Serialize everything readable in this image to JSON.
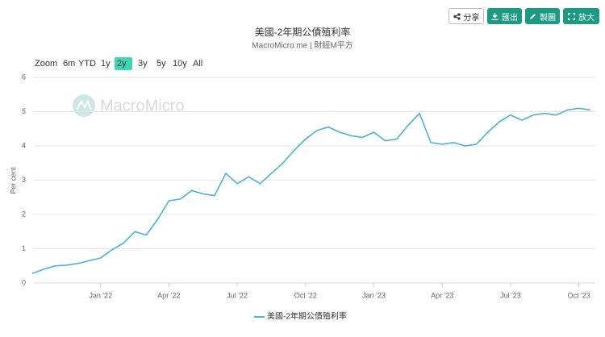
{
  "toolbar": {
    "buttons": [
      "分享",
      "匯出",
      "製圖",
      "放大"
    ]
  },
  "range_selector": {
    "label": "Zoom",
    "options": [
      "6m",
      "YTD",
      "1y",
      "2y",
      "3y",
      "5y",
      "10y",
      "All"
    ],
    "selected": 3
  },
  "watermark": "MacroMicro",
  "chart_data": {
    "type": "line",
    "title": "美國-2年期公債殖利率",
    "subtitle": "MacroMicro.me | 財經M平方",
    "y_label": "Per cent",
    "categories": [
      null,
      null,
      null,
      null,
      null,
      null,
      "Jan '22",
      null,
      null,
      null,
      null,
      null,
      "Apr '22",
      null,
      null,
      null,
      null,
      null,
      "Jul '22",
      null,
      null,
      null,
      null,
      null,
      "Oct '22",
      null,
      null,
      null,
      null,
      null,
      "Jan '23",
      null,
      null,
      null,
      null,
      null,
      "Apr '23",
      null,
      null,
      null,
      null,
      null,
      "Jul '23",
      null,
      null,
      null,
      null,
      null,
      "Oct '23",
      null
    ],
    "series": [
      {
        "name": "美國-2年期公債殖利率",
        "color": "#4ab3d3",
        "values": [
          0.28,
          0.4,
          0.5,
          0.52,
          0.57,
          0.65,
          0.73,
          0.97,
          1.16,
          1.5,
          1.4,
          1.85,
          2.4,
          2.45,
          2.7,
          2.6,
          2.55,
          3.2,
          2.9,
          3.1,
          2.9,
          3.2,
          3.5,
          3.87,
          4.2,
          4.45,
          4.55,
          4.4,
          4.3,
          4.25,
          4.4,
          4.15,
          4.2,
          4.6,
          4.95,
          4.1,
          4.05,
          4.1,
          4.0,
          4.05,
          4.4,
          4.7,
          4.9,
          4.75,
          4.9,
          4.95,
          4.9,
          5.05,
          5.1,
          5.05
        ]
      }
    ],
    "ylim": [
      0,
      6
    ],
    "yticks": [
      0,
      1,
      2,
      3,
      4,
      5,
      6
    ],
    "grid": true
  }
}
